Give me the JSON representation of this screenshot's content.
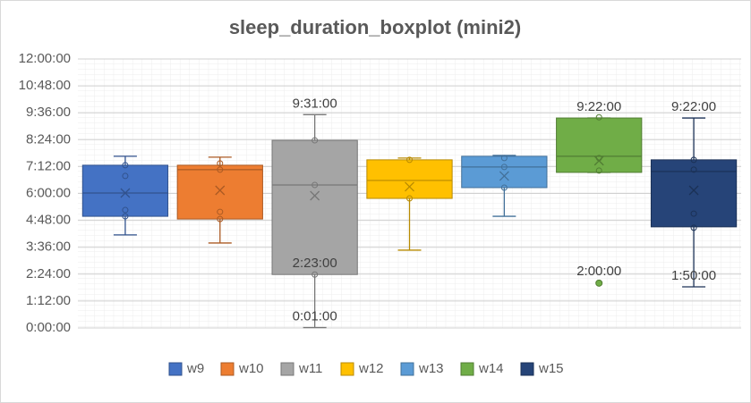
{
  "chart_data": {
    "type": "boxplot",
    "title": "sleep_duration_boxplot (mini2)",
    "ylim": [
      0,
      12
    ],
    "yticks": [
      {
        "value": 0,
        "label": "0:00:00"
      },
      {
        "value": 1.2,
        "label": "1:12:00"
      },
      {
        "value": 2.4,
        "label": "2:24:00"
      },
      {
        "value": 3.6,
        "label": "3:36:00"
      },
      {
        "value": 4.8,
        "label": "4:48:00"
      },
      {
        "value": 6,
        "label": "6:00:00"
      },
      {
        "value": 7.2,
        "label": "7:12:00"
      },
      {
        "value": 8.4,
        "label": "8:24:00"
      },
      {
        "value": 9.6,
        "label": "9:36:00"
      },
      {
        "value": 10.8,
        "label": "10:48:00"
      },
      {
        "value": 12,
        "label": "12:00:00"
      }
    ],
    "grid": true,
    "legend": "bottom",
    "series": [
      {
        "name": "w9",
        "color": "#4472c4",
        "min": 4.15,
        "q1": 4.98,
        "median": 6.02,
        "q3": 7.26,
        "max": 7.66,
        "mean": 6.02,
        "points": [
          7.26,
          6.78,
          5.26,
          4.98
        ],
        "outliers": []
      },
      {
        "name": "w10",
        "color": "#ed7d31",
        "min": 3.79,
        "q1": 4.86,
        "median": 7.06,
        "q3": 7.26,
        "max": 7.62,
        "mean": 6.14,
        "points": [
          7.34,
          7.06,
          5.18,
          4.86
        ],
        "outliers": []
      },
      {
        "name": "w11",
        "color": "#a5a5a5",
        "min": 0.0167,
        "q1": 2.3833,
        "median": 6.38,
        "q3": 8.37,
        "max": 9.5167,
        "mean": 5.9,
        "points": [
          8.37,
          6.38,
          2.3833
        ],
        "outliers": [],
        "labels": {
          "max": "9:31:00",
          "q1": "2:23:00",
          "min": "0:01:00"
        }
      },
      {
        "name": "w12",
        "color": "#ffc000",
        "min": 3.47,
        "q1": 5.78,
        "median": 6.58,
        "q3": 7.5,
        "max": 7.58,
        "mean": 6.3,
        "points": [
          7.5,
          5.78
        ],
        "outliers": []
      },
      {
        "name": "w13",
        "color": "#5b9bd5",
        "min": 4.98,
        "q1": 6.26,
        "median": 7.18,
        "q3": 7.66,
        "max": 7.7,
        "mean": 6.78,
        "points": [
          7.58,
          7.18,
          6.26
        ],
        "outliers": []
      },
      {
        "name": "w14",
        "color": "#70ad47",
        "min": 6.94,
        "q1": 6.94,
        "median": 7.66,
        "q3": 9.367,
        "max": 9.367,
        "mean": 7.46,
        "points": [
          9.4,
          7.58,
          7.02
        ],
        "outliers": [
          2.0
        ],
        "labels": {
          "max": "9:22:00",
          "outliers": [
            "2:00:00"
          ]
        }
      },
      {
        "name": "w15",
        "color": "#264478",
        "min": 1.8333,
        "q1": 4.51,
        "median": 6.98,
        "q3": 7.5,
        "max": 9.367,
        "mean": 6.14,
        "points": [
          7.5,
          7.06,
          5.1,
          4.47
        ],
        "outliers": [],
        "labels": {
          "max": "9:22:00",
          "min": "1:50:00"
        }
      }
    ]
  }
}
